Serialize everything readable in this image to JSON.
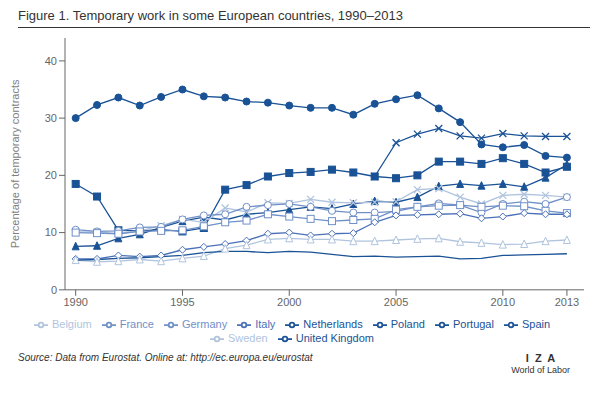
{
  "chart_data": {
    "type": "line",
    "title": "Figure 1. Temporary work in some European countries, 1990–2013",
    "ylabel": "Percentage of temporary contracts",
    "annotations": [
      "Source: Data from Eurostat. Online at: http://ec.europa.eu/eurostat",
      "I  Z  A",
      "World of Labor"
    ],
    "x": [
      1990,
      1991,
      1992,
      1993,
      1994,
      1995,
      1996,
      1997,
      1998,
      1999,
      2000,
      2001,
      2002,
      2003,
      2004,
      2005,
      2006,
      2007,
      2008,
      2009,
      2010,
      2011,
      2012,
      2013
    ],
    "xlim": [
      1989.5,
      2013.8
    ],
    "xticks": [
      1990,
      1995,
      2000,
      2005,
      2010,
      2013
    ],
    "ylim": [
      0,
      44
    ],
    "yticks": [
      0,
      10,
      20,
      30,
      40
    ],
    "grid": false,
    "legend": "bottom",
    "series": [
      {
        "name": "Poland",
        "color": "#1a5296",
        "marker": "x",
        "values": [
          null,
          null,
          null,
          null,
          null,
          null,
          null,
          null,
          null,
          null,
          null,
          null,
          null,
          null,
          19.8,
          25.7,
          27.2,
          28.2,
          26.9,
          26.5,
          27.3,
          26.9,
          26.8,
          26.8
        ]
      },
      {
        "name": "Spain",
        "color": "#1a5296",
        "marker": "circle",
        "values": [
          30.0,
          32.3,
          33.6,
          32.2,
          33.7,
          35.0,
          33.8,
          33.6,
          32.9,
          32.7,
          32.2,
          31.8,
          31.8,
          30.6,
          32.5,
          33.3,
          34.0,
          31.7,
          29.3,
          25.4,
          24.9,
          25.3,
          23.4,
          23.1
        ]
      },
      {
        "name": "Portugal",
        "color": "#1a5296",
        "marker": "square",
        "values": [
          18.5,
          16.3,
          10.4,
          10.3,
          10.5,
          10.2,
          10.8,
          17.5,
          18.3,
          19.8,
          20.4,
          20.6,
          21.0,
          20.5,
          19.8,
          19.5,
          20.0,
          22.4,
          22.4,
          22.0,
          23.0,
          22.0,
          20.5,
          21.5
        ]
      },
      {
        "name": "Netherlands",
        "color": "#1a5296",
        "marker": "triangle",
        "values": [
          7.6,
          7.7,
          9.0,
          9.7,
          10.9,
          12.0,
          12.7,
          12.2,
          13.2,
          13.5,
          14.0,
          14.5,
          14.2,
          15.0,
          15.5,
          15.3,
          16.2,
          18.1,
          18.5,
          18.2,
          18.5,
          18.0,
          19.6,
          21.9
        ]
      },
      {
        "name": "Sweden",
        "color": "#b0c4de",
        "marker": "x",
        "values": [
          10.1,
          10.1,
          9.8,
          10.3,
          11.2,
          12.3,
          11.8,
          14.3,
          13.6,
          15.2,
          15.1,
          15.8,
          15.3,
          15.2,
          15.3,
          15.4,
          17.5,
          17.7,
          16.2,
          15.0,
          16.5,
          16.7,
          16.5,
          16.2
        ]
      },
      {
        "name": "France",
        "color": "#7090c8",
        "marker": "open circle",
        "values": [
          10.5,
          10.2,
          10.3,
          10.9,
          11.0,
          12.3,
          13.0,
          13.2,
          14.5,
          14.8,
          15.0,
          14.5,
          13.8,
          13.5,
          13.5,
          13.7,
          14.5,
          15.1,
          14.8,
          13.5,
          15.0,
          15.4,
          15.0,
          16.2
        ]
      },
      {
        "name": "Germany",
        "color": "#7090c8",
        "marker": "open square",
        "values": [
          10.0,
          9.9,
          9.8,
          10.2,
          10.3,
          10.4,
          11.1,
          11.8,
          12.1,
          13.2,
          12.8,
          12.4,
          12.0,
          12.2,
          12.4,
          14.0,
          14.5,
          14.7,
          14.8,
          14.5,
          14.7,
          14.6,
          13.8,
          13.4
        ]
      },
      {
        "name": "Italy",
        "color": "#4a70b8",
        "marker": "open diamond",
        "values": [
          5.4,
          5.4,
          6.0,
          5.8,
          6.0,
          7.0,
          7.5,
          8.0,
          8.6,
          9.8,
          10.0,
          9.5,
          9.8,
          9.9,
          11.8,
          13.0,
          13.1,
          13.2,
          13.3,
          12.5,
          12.8,
          13.4,
          13.2,
          13.2
        ]
      },
      {
        "name": "Belgium",
        "color": "#b0c4de",
        "marker": "open triangle",
        "values": [
          5.2,
          4.9,
          5.0,
          5.3,
          5.0,
          5.5,
          5.9,
          7.2,
          7.8,
          8.8,
          9.0,
          8.8,
          8.8,
          8.5,
          8.5,
          8.7,
          8.9,
          9.0,
          8.4,
          8.2,
          7.9,
          8.0,
          8.5,
          8.7
        ]
      },
      {
        "name": "United Kingdom",
        "color": "#1a5296",
        "marker": "none",
        "values": [
          5.2,
          5.3,
          5.5,
          5.6,
          5.8,
          6.0,
          6.5,
          6.7,
          6.7,
          6.5,
          6.7,
          6.6,
          6.2,
          5.8,
          5.9,
          5.7,
          5.8,
          5.9,
          5.4,
          5.5,
          6.0,
          6.1,
          6.2,
          6.3
        ]
      }
    ]
  }
}
